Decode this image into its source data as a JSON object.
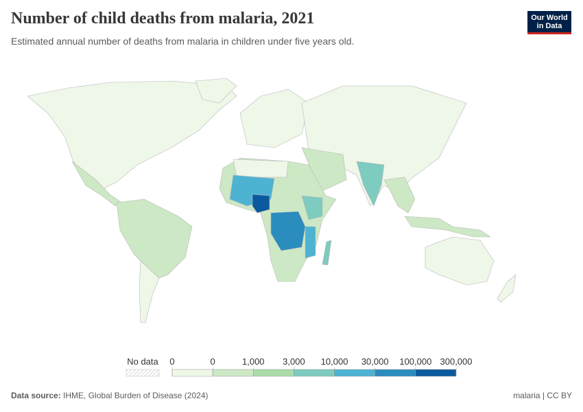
{
  "header": {
    "title": "Number of child deaths from malaria, 2021",
    "subtitle": "Estimated annual number of deaths from malaria in children under five years old.",
    "logo": [
      "Our World",
      "in Data"
    ]
  },
  "legend": {
    "no_data": "No data",
    "ticks": [
      "0",
      "0",
      "1,000",
      "3,000",
      "10,000",
      "30,000",
      "100,000",
      "300,000"
    ],
    "colors": [
      "#eef7e8",
      "#cde8c4",
      "#abdcaa",
      "#7ecbbf",
      "#4eb3d3",
      "#2b8cbe",
      "#0b5a9e"
    ]
  },
  "footer": {
    "source_label": "Data source:",
    "source": "IHME, Global Burden of Disease (2024)",
    "license": "malaria | CC BY"
  }
}
